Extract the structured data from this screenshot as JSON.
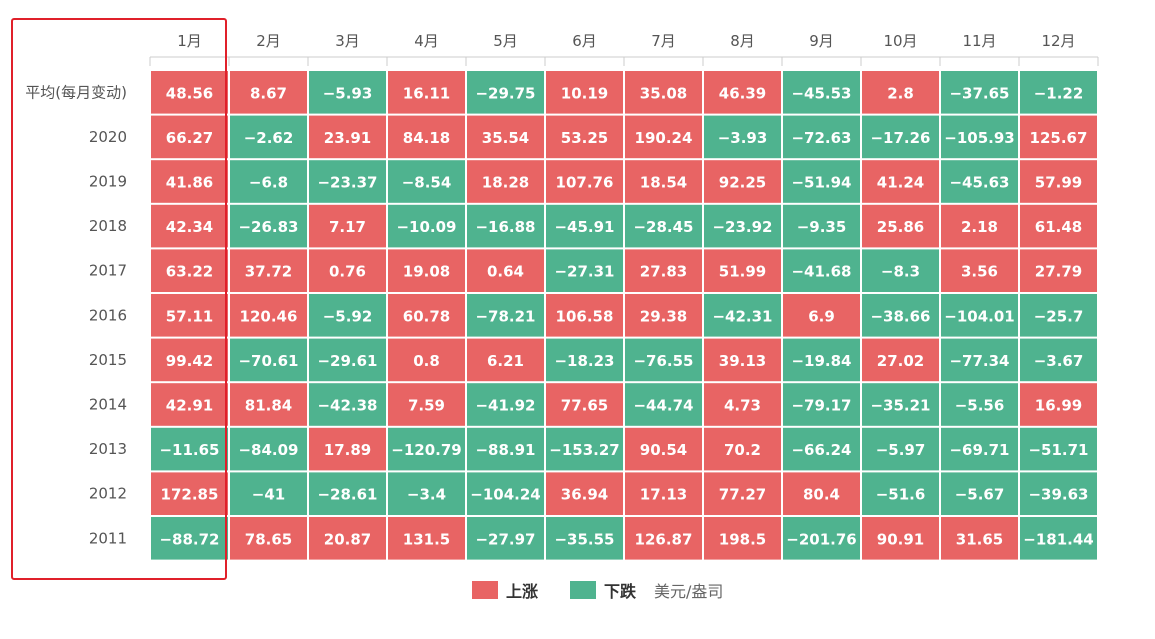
{
  "colors": {
    "up": "#e86464",
    "down": "#4fb38f",
    "highlight": "#e0202a"
  },
  "legend": {
    "up_label": "上涨",
    "down_label": "下跌",
    "unit": "美元/盎司"
  },
  "chart_data": {
    "type": "heatmap",
    "columns": [
      "1月",
      "2月",
      "3月",
      "4月",
      "5月",
      "6月",
      "7月",
      "8月",
      "9月",
      "10月",
      "11月",
      "12月"
    ],
    "rows": [
      "平均(每月变动)",
      "2020",
      "2019",
      "2018",
      "2017",
      "2016",
      "2015",
      "2014",
      "2013",
      "2012",
      "2011"
    ],
    "values": [
      [
        "48.56",
        "8.67",
        "-5.93",
        "16.11",
        "-29.75",
        "10.19",
        "35.08",
        "46.39",
        "-45.53",
        "2.8",
        "-37.65",
        "-1.22"
      ],
      [
        "66.27",
        "-2.62",
        "23.91",
        "84.18",
        "35.54",
        "53.25",
        "190.24",
        "-3.93",
        "-72.63",
        "-17.26",
        "-105.93",
        "125.67"
      ],
      [
        "41.86",
        "-6.8",
        "-23.37",
        "-8.54",
        "18.28",
        "107.76",
        "18.54",
        "92.25",
        "-51.94",
        "41.24",
        "-45.63",
        "57.99"
      ],
      [
        "42.34",
        "-26.83",
        "7.17",
        "-10.09",
        "-16.88",
        "-45.91",
        "-28.45",
        "-23.92",
        "-9.35",
        "25.86",
        "2.18",
        "61.48"
      ],
      [
        "63.22",
        "37.72",
        "0.76",
        "19.08",
        "0.64",
        "-27.31",
        "27.83",
        "51.99",
        "-41.68",
        "-8.3",
        "3.56",
        "27.79"
      ],
      [
        "57.11",
        "120.46",
        "-5.92",
        "60.78",
        "-78.21",
        "106.58",
        "29.38",
        "-42.31",
        "6.9",
        "-38.66",
        "-104.01",
        "-25.7"
      ],
      [
        "99.42",
        "-70.61",
        "-29.61",
        "0.8",
        "6.21",
        "-18.23",
        "-76.55",
        "39.13",
        "-19.84",
        "27.02",
        "-77.34",
        "-3.67"
      ],
      [
        "42.91",
        "81.84",
        "-42.38",
        "7.59",
        "-41.92",
        "77.65",
        "-44.74",
        "4.73",
        "-79.17",
        "-35.21",
        "-5.56",
        "16.99"
      ],
      [
        "-11.65",
        "-84.09",
        "17.89",
        "-120.79",
        "-88.91",
        "-153.27",
        "90.54",
        "70.2",
        "-66.24",
        "-5.97",
        "-69.71",
        "-51.71"
      ],
      [
        "172.85",
        "-41",
        "-28.61",
        "-3.4",
        "-104.24",
        "36.94",
        "17.13",
        "77.27",
        "80.4",
        "-51.6",
        "-5.67",
        "-39.63"
      ],
      [
        "-88.72",
        "78.65",
        "20.87",
        "131.5",
        "-27.97",
        "-35.55",
        "126.87",
        "198.5",
        "-201.76",
        "90.91",
        "31.65",
        "-181.44"
      ]
    ]
  }
}
